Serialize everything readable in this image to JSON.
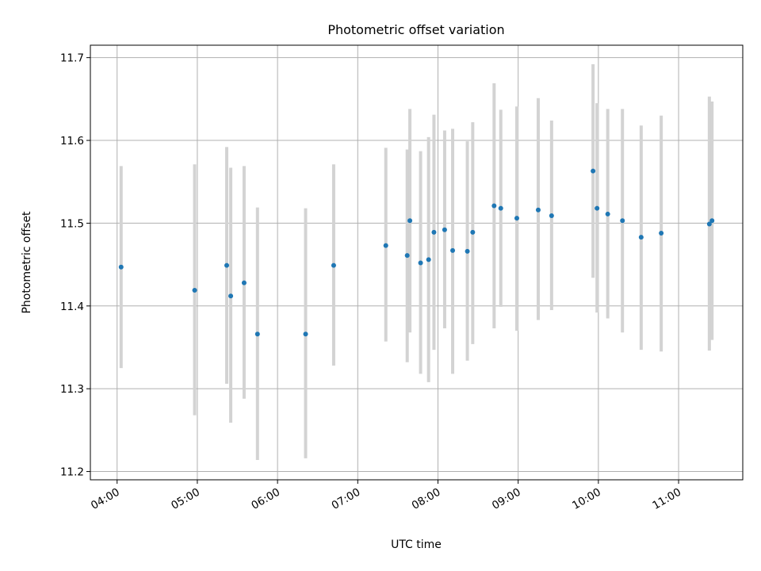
{
  "chart_data": {
    "type": "scatter",
    "title": "Photometric offset variation",
    "xlabel": "UTC time",
    "ylabel": "Photometric offset",
    "xlim": [
      "03:40",
      "11:48"
    ],
    "ylim": [
      11.19,
      11.715
    ],
    "xticks": [
      "04:00",
      "05:00",
      "06:00",
      "07:00",
      "08:00",
      "09:00",
      "10:00",
      "11:00"
    ],
    "yticks": [
      11.2,
      11.3,
      11.4,
      11.5,
      11.6,
      11.7
    ],
    "grid": true,
    "colors": {
      "points": "#1f77b4",
      "errorbars": "#d3d3d3"
    },
    "points": [
      {
        "x": "04:03",
        "y": 11.447,
        "ylow": 11.325,
        "yhigh": 11.569
      },
      {
        "x": "04:58",
        "y": 11.419,
        "ylow": 11.268,
        "yhigh": 11.571
      },
      {
        "x": "05:22",
        "y": 11.449,
        "ylow": 11.306,
        "yhigh": 11.592
      },
      {
        "x": "05:25",
        "y": 11.412,
        "ylow": 11.259,
        "yhigh": 11.567
      },
      {
        "x": "05:35",
        "y": 11.428,
        "ylow": 11.288,
        "yhigh": 11.569
      },
      {
        "x": "05:45",
        "y": 11.366,
        "ylow": 11.214,
        "yhigh": 11.519
      },
      {
        "x": "06:21",
        "y": 11.366,
        "ylow": 11.216,
        "yhigh": 11.518
      },
      {
        "x": "06:42",
        "y": 11.449,
        "ylow": 11.328,
        "yhigh": 11.571
      },
      {
        "x": "07:21",
        "y": 11.473,
        "ylow": 11.357,
        "yhigh": 11.591
      },
      {
        "x": "07:37",
        "y": 11.461,
        "ylow": 11.332,
        "yhigh": 11.589
      },
      {
        "x": "07:39",
        "y": 11.503,
        "ylow": 11.368,
        "yhigh": 11.638
      },
      {
        "x": "07:47",
        "y": 11.452,
        "ylow": 11.318,
        "yhigh": 11.587
      },
      {
        "x": "07:53",
        "y": 11.456,
        "ylow": 11.308,
        "yhigh": 11.604
      },
      {
        "x": "07:57",
        "y": 11.489,
        "ylow": 11.347,
        "yhigh": 11.631
      },
      {
        "x": "08:05",
        "y": 11.492,
        "ylow": 11.373,
        "yhigh": 11.612
      },
      {
        "x": "08:11",
        "y": 11.467,
        "ylow": 11.318,
        "yhigh": 11.614
      },
      {
        "x": "08:22",
        "y": 11.466,
        "ylow": 11.334,
        "yhigh": 11.599
      },
      {
        "x": "08:26",
        "y": 11.489,
        "ylow": 11.354,
        "yhigh": 11.622
      },
      {
        "x": "08:42",
        "y": 11.521,
        "ylow": 11.373,
        "yhigh": 11.669
      },
      {
        "x": "08:47",
        "y": 11.518,
        "ylow": 11.399,
        "yhigh": 11.637
      },
      {
        "x": "08:59",
        "y": 11.506,
        "ylow": 11.37,
        "yhigh": 11.641
      },
      {
        "x": "09:15",
        "y": 11.516,
        "ylow": 11.383,
        "yhigh": 11.651
      },
      {
        "x": "09:25",
        "y": 11.509,
        "ylow": 11.395,
        "yhigh": 11.624
      },
      {
        "x": "09:56",
        "y": 11.563,
        "ylow": 11.434,
        "yhigh": 11.692
      },
      {
        "x": "09:59",
        "y": 11.518,
        "ylow": 11.392,
        "yhigh": 11.645
      },
      {
        "x": "10:07",
        "y": 11.511,
        "ylow": 11.385,
        "yhigh": 11.638
      },
      {
        "x": "10:18",
        "y": 11.503,
        "ylow": 11.368,
        "yhigh": 11.638
      },
      {
        "x": "10:32",
        "y": 11.483,
        "ylow": 11.347,
        "yhigh": 11.618
      },
      {
        "x": "10:47",
        "y": 11.488,
        "ylow": 11.345,
        "yhigh": 11.63
      },
      {
        "x": "11:23",
        "y": 11.499,
        "ylow": 11.346,
        "yhigh": 11.653
      },
      {
        "x": "11:25",
        "y": 11.503,
        "ylow": 11.359,
        "yhigh": 11.647
      }
    ]
  }
}
